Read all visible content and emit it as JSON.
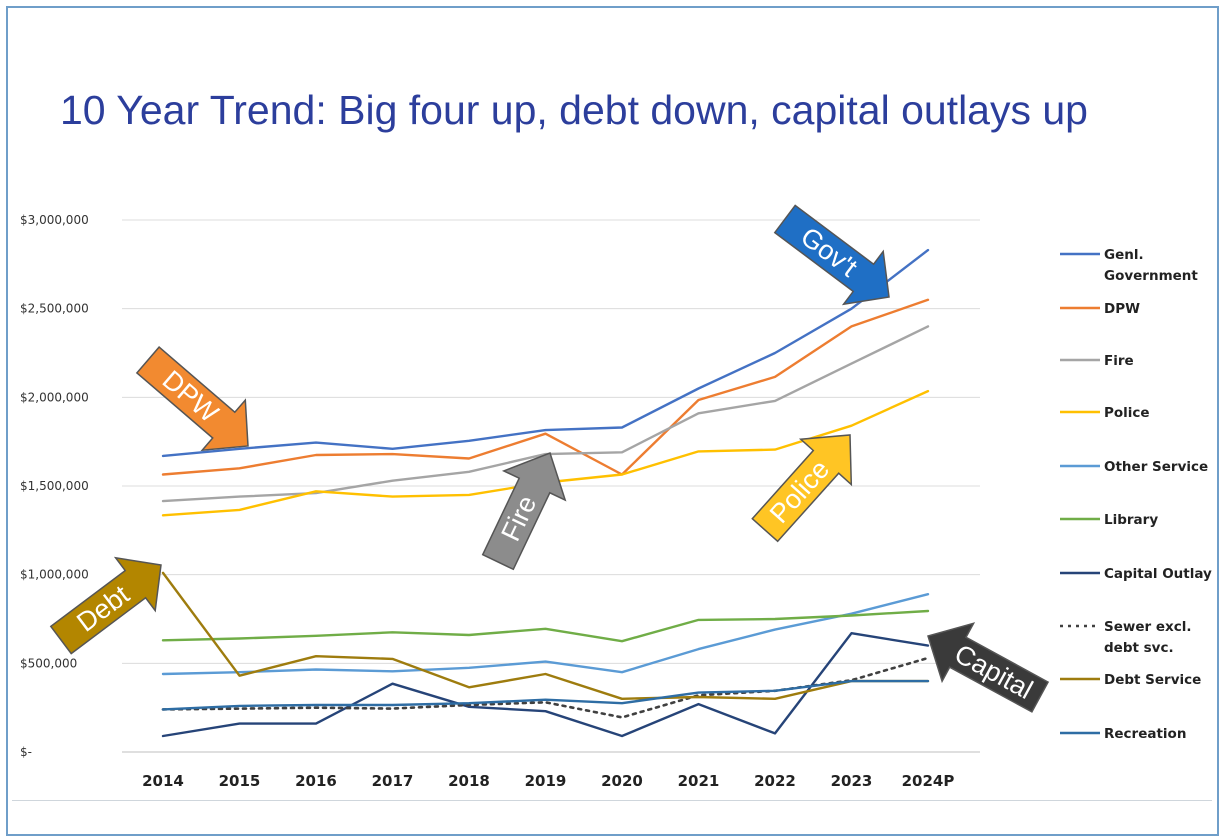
{
  "slide": {
    "title": "10 Year Trend:  Big four up, debt down, capital outlays up"
  },
  "chart_data": {
    "type": "line",
    "ylim": [
      0,
      3000000
    ],
    "yticks": [
      {
        "value": 0,
        "label": "$-"
      },
      {
        "value": 500000,
        "label": "$500,000"
      },
      {
        "value": 1000000,
        "label": "$1,000,000"
      },
      {
        "value": 1500000,
        "label": "$1,500,000"
      },
      {
        "value": 2000000,
        "label": "$2,000,000"
      },
      {
        "value": 2500000,
        "label": "$2,500,000"
      },
      {
        "value": 3000000,
        "label": "$3,000,000"
      }
    ],
    "categories": [
      "2014",
      "2015",
      "2016",
      "2017",
      "2018",
      "2019",
      "2020",
      "2021",
      "2022",
      "2023",
      "2024P"
    ],
    "grid": true,
    "legend_position": "right",
    "series": [
      {
        "name": "Genl. Government",
        "legend_lines": [
          "Genl.",
          "Government"
        ],
        "color": "#4472c4",
        "dash": false,
        "values": [
          1670000,
          1710000,
          1745000,
          1710000,
          1755000,
          1815000,
          1830000,
          2050000,
          2250000,
          2500000,
          2830000
        ]
      },
      {
        "name": "DPW",
        "legend_lines": [
          "DPW"
        ],
        "color": "#ed7d31",
        "dash": false,
        "values": [
          1565000,
          1600000,
          1675000,
          1680000,
          1655000,
          1795000,
          1565000,
          1985000,
          2115000,
          2400000,
          2550000
        ]
      },
      {
        "name": "Fire",
        "legend_lines": [
          "Fire"
        ],
        "color": "#a5a5a5",
        "dash": false,
        "values": [
          1415000,
          1440000,
          1460000,
          1530000,
          1580000,
          1680000,
          1690000,
          1910000,
          1980000,
          2190000,
          2400000
        ]
      },
      {
        "name": "Police",
        "legend_lines": [
          "Police"
        ],
        "color": "#ffc000",
        "dash": false,
        "values": [
          1335000,
          1365000,
          1470000,
          1440000,
          1450000,
          1520000,
          1565000,
          1695000,
          1705000,
          1840000,
          2035000
        ]
      },
      {
        "name": "Other Service",
        "legend_lines": [
          "Other Service"
        ],
        "color": "#5b9bd5",
        "dash": false,
        "values": [
          440000,
          450000,
          465000,
          455000,
          475000,
          510000,
          450000,
          580000,
          690000,
          780000,
          890000
        ]
      },
      {
        "name": "Library",
        "legend_lines": [
          "Library"
        ],
        "color": "#70ad47",
        "dash": false,
        "values": [
          630000,
          640000,
          655000,
          675000,
          660000,
          695000,
          625000,
          745000,
          750000,
          770000,
          795000
        ]
      },
      {
        "name": "Capital Outlay",
        "legend_lines": [
          "Capital Outlay"
        ],
        "color": "#264478",
        "dash": false,
        "values": [
          90000,
          160000,
          160000,
          385000,
          255000,
          230000,
          90000,
          270000,
          105000,
          670000,
          600000
        ]
      },
      {
        "name": "Sewer excl. debt svc.",
        "legend_lines": [
          "Sewer excl.",
          "debt svc."
        ],
        "color": "#404040",
        "dash": true,
        "values": [
          240000,
          245000,
          250000,
          245000,
          265000,
          280000,
          195000,
          320000,
          345000,
          405000,
          530000
        ]
      },
      {
        "name": "Debt Service",
        "legend_lines": [
          "Debt Service"
        ],
        "color": "#9e7c0e",
        "dash": false,
        "values": [
          1010000,
          430000,
          540000,
          525000,
          365000,
          440000,
          300000,
          310000,
          300000,
          400000,
          400000
        ]
      },
      {
        "name": "Recreation",
        "legend_lines": [
          "Recreation"
        ],
        "color": "#2e6da4",
        "dash": false,
        "values": [
          240000,
          260000,
          265000,
          265000,
          275000,
          295000,
          275000,
          335000,
          345000,
          400000,
          400000
        ]
      }
    ],
    "annotations": [
      {
        "label": "Gov't",
        "color": "#1f6fc5"
      },
      {
        "label": "DPW",
        "color": "#f28a30"
      },
      {
        "label": "Fire",
        "color": "#8c8c8c"
      },
      {
        "label": "Police",
        "color": "#ffc524"
      },
      {
        "label": "Debt",
        "color": "#b38600"
      },
      {
        "label": "Capital",
        "color": "#3a3a3a"
      }
    ]
  }
}
